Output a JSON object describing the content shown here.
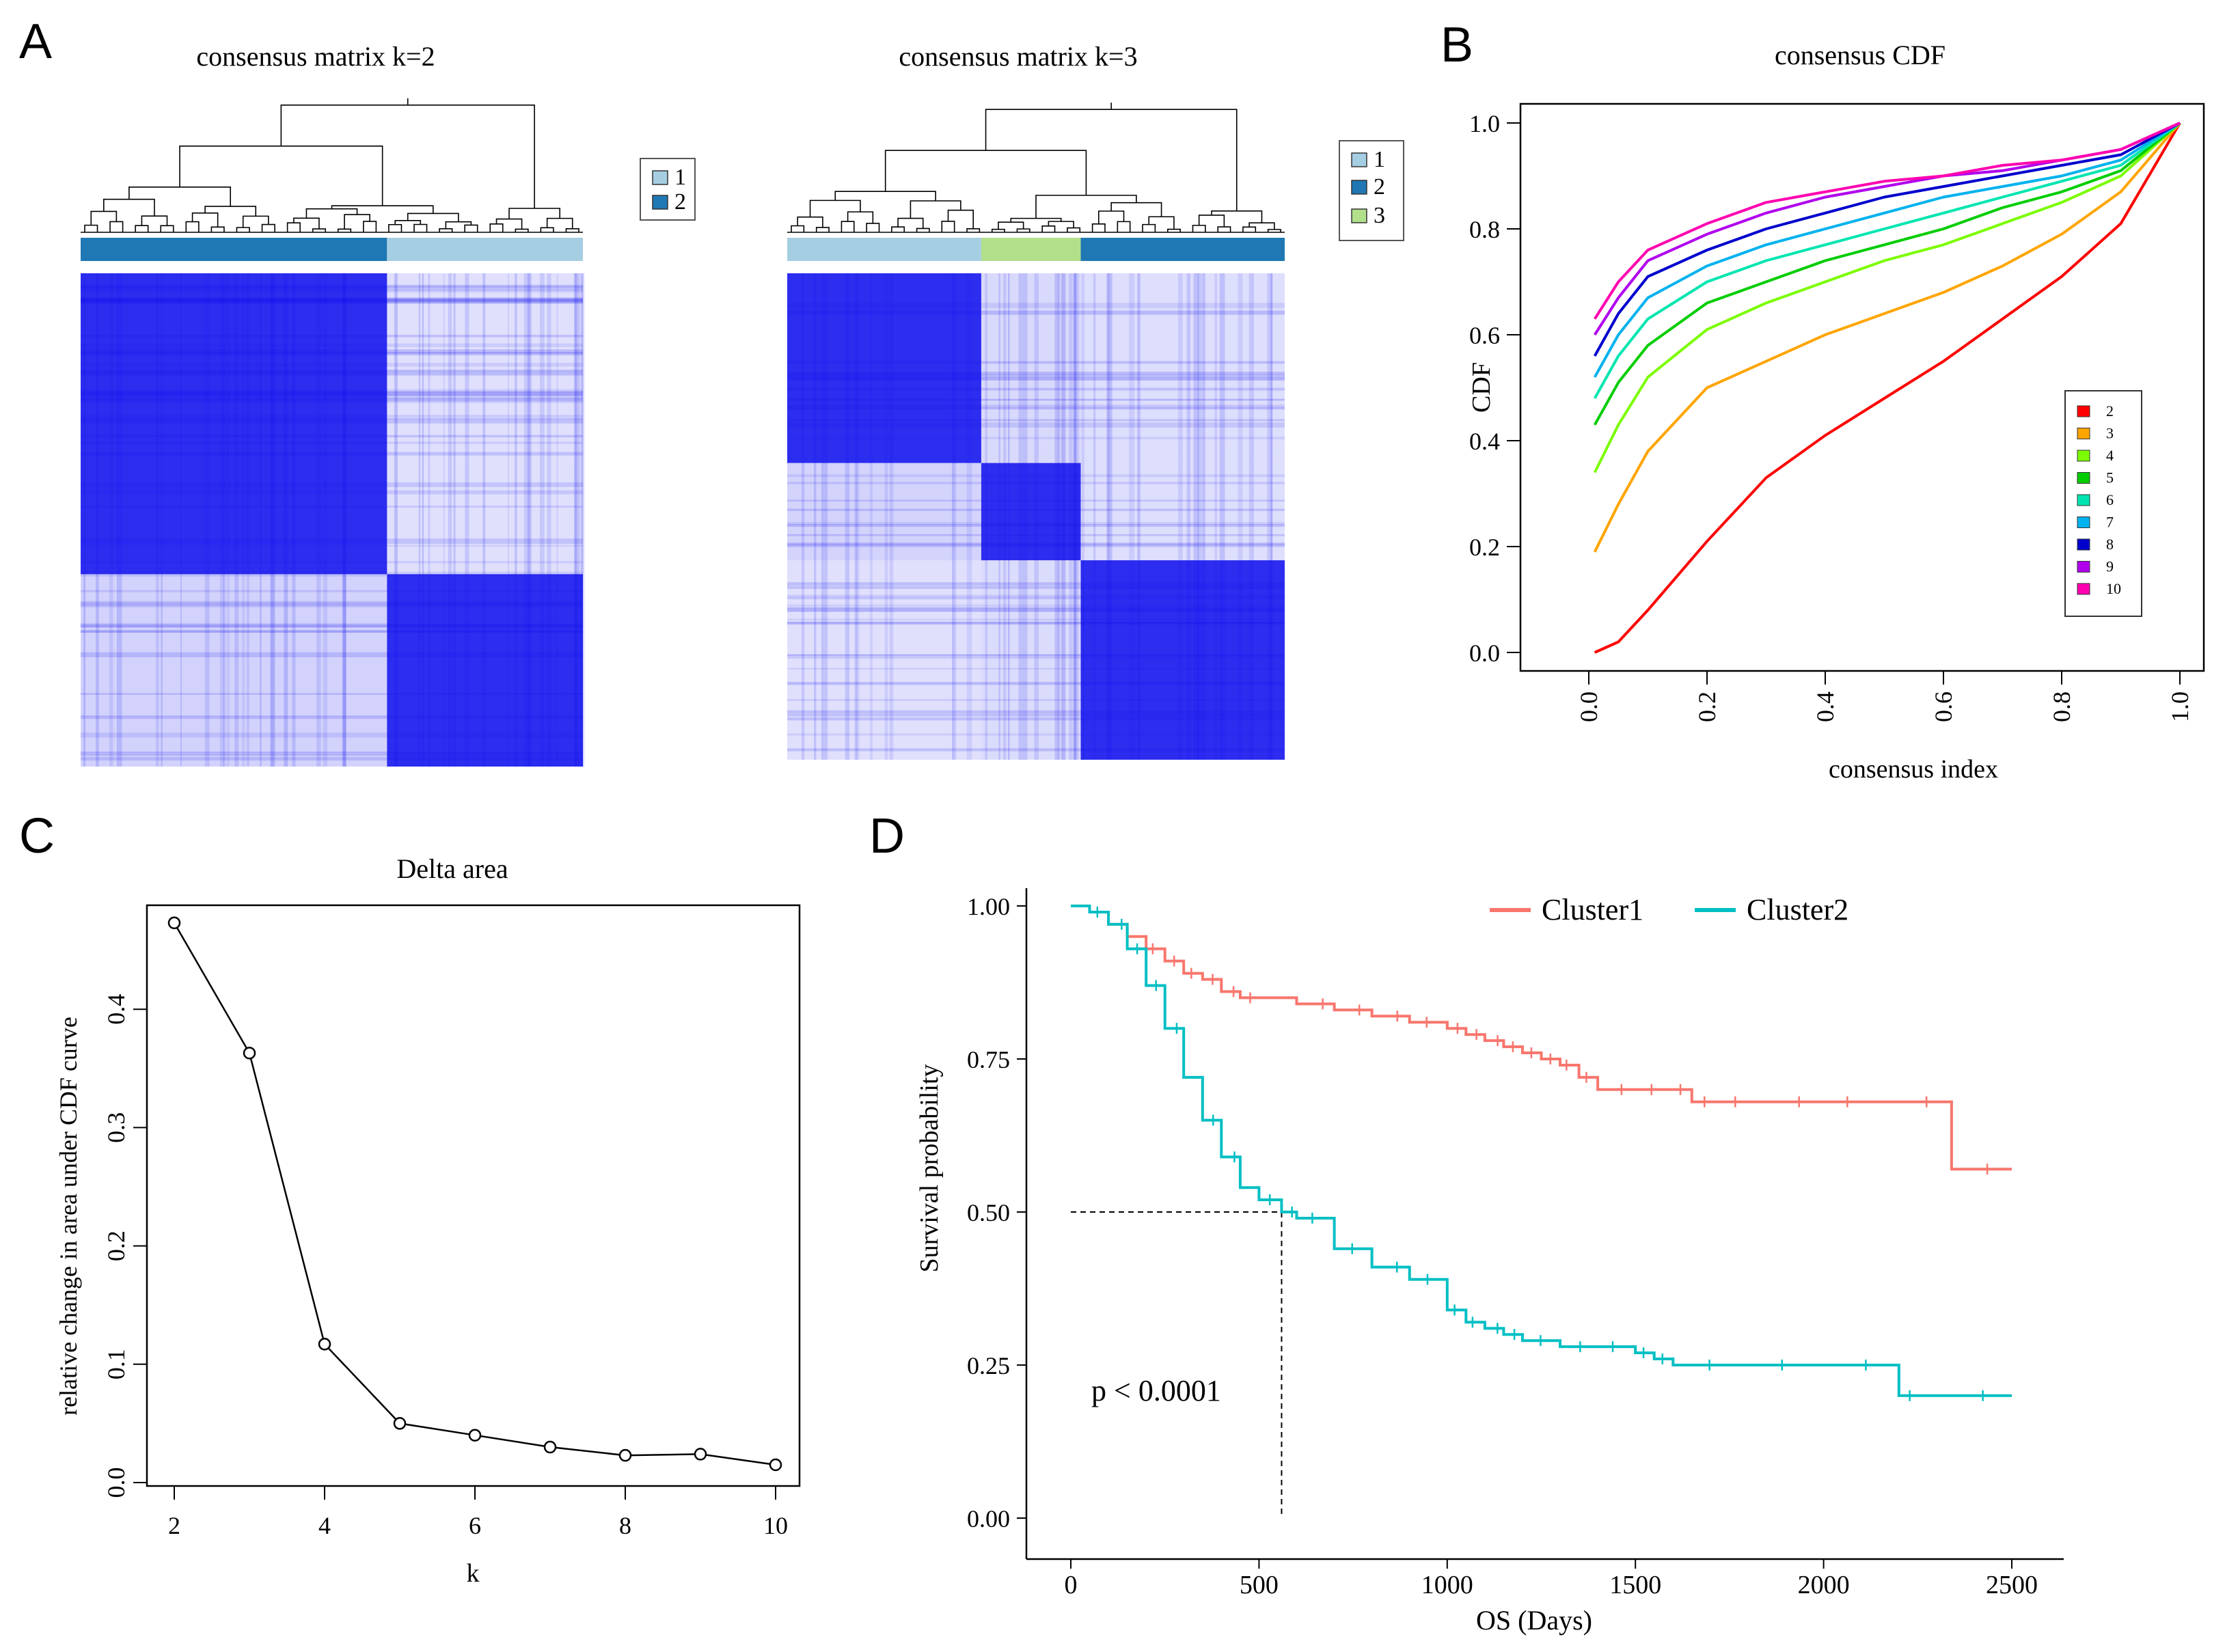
{
  "panel_letters": {
    "a": "A",
    "b": "B",
    "c": "C",
    "d": "D"
  },
  "colors": {
    "heat": "#1010ee",
    "cluster_light": "#a6cee3",
    "cluster_dark": "#1f78b4",
    "cluster_green": "#b2df8a",
    "cluster1_line": "#f8766d",
    "cluster2_line": "#00bfc4"
  },
  "chart_data": [
    {
      "id": "A1",
      "type": "heatmap",
      "title": "consensus matrix k=2",
      "legend": [
        {
          "label": "1",
          "color": "#a6cee3"
        },
        {
          "label": "2",
          "color": "#1f78b4"
        }
      ],
      "cluster_bar": [
        {
          "cluster": "2",
          "fraction": 0.61
        },
        {
          "cluster": "1",
          "fraction": 0.39
        }
      ],
      "blocks": [
        {
          "from": 0.0,
          "to": 0.61,
          "cluster": "2"
        },
        {
          "from": 0.61,
          "to": 1.0,
          "cluster": "1"
        }
      ]
    },
    {
      "id": "A2",
      "type": "heatmap",
      "title": "consensus matrix k=3",
      "legend": [
        {
          "label": "1",
          "color": "#a6cee3"
        },
        {
          "label": "2",
          "color": "#1f78b4"
        },
        {
          "label": "3",
          "color": "#b2df8a"
        }
      ],
      "cluster_bar": [
        {
          "cluster": "1",
          "fraction": 0.39
        },
        {
          "cluster": "3",
          "fraction": 0.2
        },
        {
          "cluster": "2",
          "fraction": 0.41
        }
      ],
      "blocks": [
        {
          "from": 0.0,
          "to": 0.39,
          "cluster": "1"
        },
        {
          "from": 0.39,
          "to": 0.59,
          "cluster": "3"
        },
        {
          "from": 0.59,
          "to": 1.0,
          "cluster": "2"
        }
      ]
    },
    {
      "id": "B",
      "type": "line",
      "title": "consensus CDF",
      "xlabel": "consensus index",
      "ylabel": "CDF",
      "xlim": [
        0,
        1
      ],
      "ylim": [
        0,
        1
      ],
      "xticks": [
        "0.0",
        "0.2",
        "0.4",
        "0.6",
        "0.8",
        "1.0"
      ],
      "yticks": [
        "0.0",
        "0.2",
        "0.4",
        "0.6",
        "0.8",
        "1.0"
      ],
      "legend_position": "bottom-right",
      "x": [
        0.01,
        0.05,
        0.1,
        0.2,
        0.3,
        0.4,
        0.5,
        0.6,
        0.7,
        0.8,
        0.9,
        1.0
      ],
      "series": [
        {
          "name": "2",
          "color": "#ff0000",
          "values": [
            0.0,
            0.02,
            0.08,
            0.21,
            0.33,
            0.41,
            0.48,
            0.55,
            0.63,
            0.71,
            0.81,
            1.0
          ]
        },
        {
          "name": "3",
          "color": "#ffa500",
          "values": [
            0.19,
            0.28,
            0.38,
            0.5,
            0.55,
            0.6,
            0.64,
            0.68,
            0.73,
            0.79,
            0.87,
            1.0
          ]
        },
        {
          "name": "4",
          "color": "#7cfc00",
          "values": [
            0.34,
            0.43,
            0.52,
            0.61,
            0.66,
            0.7,
            0.74,
            0.77,
            0.81,
            0.85,
            0.9,
            1.0
          ]
        },
        {
          "name": "5",
          "color": "#00cd00",
          "values": [
            0.43,
            0.51,
            0.58,
            0.66,
            0.7,
            0.74,
            0.77,
            0.8,
            0.84,
            0.87,
            0.91,
            1.0
          ]
        },
        {
          "name": "6",
          "color": "#00e5b0",
          "values": [
            0.48,
            0.56,
            0.63,
            0.7,
            0.74,
            0.77,
            0.8,
            0.83,
            0.86,
            0.89,
            0.92,
            1.0
          ]
        },
        {
          "name": "7",
          "color": "#00b2ee",
          "values": [
            0.52,
            0.6,
            0.67,
            0.73,
            0.77,
            0.8,
            0.83,
            0.86,
            0.88,
            0.9,
            0.93,
            1.0
          ]
        },
        {
          "name": "8",
          "color": "#0000cd",
          "values": [
            0.56,
            0.64,
            0.71,
            0.76,
            0.8,
            0.83,
            0.86,
            0.88,
            0.9,
            0.92,
            0.94,
            1.0
          ]
        },
        {
          "name": "9",
          "color": "#b000ee",
          "values": [
            0.6,
            0.67,
            0.74,
            0.79,
            0.83,
            0.86,
            0.88,
            0.9,
            0.91,
            0.93,
            0.95,
            1.0
          ]
        },
        {
          "name": "10",
          "color": "#ff00b0",
          "values": [
            0.63,
            0.7,
            0.76,
            0.81,
            0.85,
            0.87,
            0.89,
            0.9,
            0.92,
            0.93,
            0.95,
            1.0
          ]
        }
      ]
    },
    {
      "id": "C",
      "type": "line",
      "title": "Delta area",
      "xlabel": "k",
      "ylabel": "relative change in area under CDF curve",
      "xlim": [
        2,
        10
      ],
      "ylim": [
        0,
        0.47
      ],
      "xticks": [
        "2",
        "4",
        "6",
        "8",
        "10"
      ],
      "yticks": [
        "0.0",
        "0.1",
        "0.2",
        "0.3",
        "0.4"
      ],
      "x": [
        2,
        3,
        4,
        5,
        6,
        7,
        8,
        9,
        10
      ],
      "values": [
        0.473,
        0.363,
        0.117,
        0.05,
        0.04,
        0.03,
        0.023,
        0.024,
        0.015
      ]
    },
    {
      "id": "D",
      "type": "line",
      "title": "",
      "xlabel": "OS (Days)",
      "ylabel": "Survival probability",
      "xlim": [
        0,
        2500
      ],
      "ylim": [
        0,
        1
      ],
      "xticks": [
        "0",
        "500",
        "1000",
        "1500",
        "2000",
        "2500"
      ],
      "yticks": [
        "0.00",
        "0.25",
        "0.50",
        "0.75",
        "1.00"
      ],
      "annotation": "p < 0.0001",
      "median_survival_cluster2": 560,
      "legend_position": "top",
      "series": [
        {
          "name": "Cluster1",
          "color": "#f8766d",
          "x": [
            0,
            50,
            100,
            150,
            200,
            250,
            300,
            350,
            400,
            450,
            500,
            600,
            700,
            800,
            900,
            1000,
            1050,
            1100,
            1150,
            1200,
            1250,
            1300,
            1350,
            1400,
            1500,
            1600,
            1650,
            1700,
            1800,
            2000,
            2200,
            2340,
            2500
          ],
          "values": [
            1.0,
            0.99,
            0.97,
            0.95,
            0.93,
            0.91,
            0.89,
            0.88,
            0.86,
            0.85,
            0.85,
            0.84,
            0.83,
            0.82,
            0.81,
            0.8,
            0.79,
            0.78,
            0.77,
            0.76,
            0.75,
            0.74,
            0.72,
            0.7,
            0.7,
            0.7,
            0.68,
            0.68,
            0.68,
            0.68,
            0.68,
            0.57,
            0.57
          ]
        },
        {
          "name": "Cluster2",
          "color": "#00bfc4",
          "x": [
            0,
            50,
            100,
            150,
            200,
            250,
            300,
            350,
            400,
            450,
            500,
            560,
            600,
            700,
            800,
            900,
            1000,
            1050,
            1100,
            1150,
            1200,
            1300,
            1400,
            1500,
            1550,
            1600,
            1800,
            2000,
            2200,
            2250,
            2500
          ],
          "values": [
            1.0,
            0.99,
            0.97,
            0.93,
            0.87,
            0.8,
            0.72,
            0.65,
            0.59,
            0.54,
            0.52,
            0.5,
            0.49,
            0.44,
            0.41,
            0.39,
            0.34,
            0.32,
            0.31,
            0.3,
            0.29,
            0.28,
            0.28,
            0.27,
            0.26,
            0.25,
            0.25,
            0.25,
            0.2,
            0.2,
            0.2
          ]
        }
      ]
    }
  ]
}
